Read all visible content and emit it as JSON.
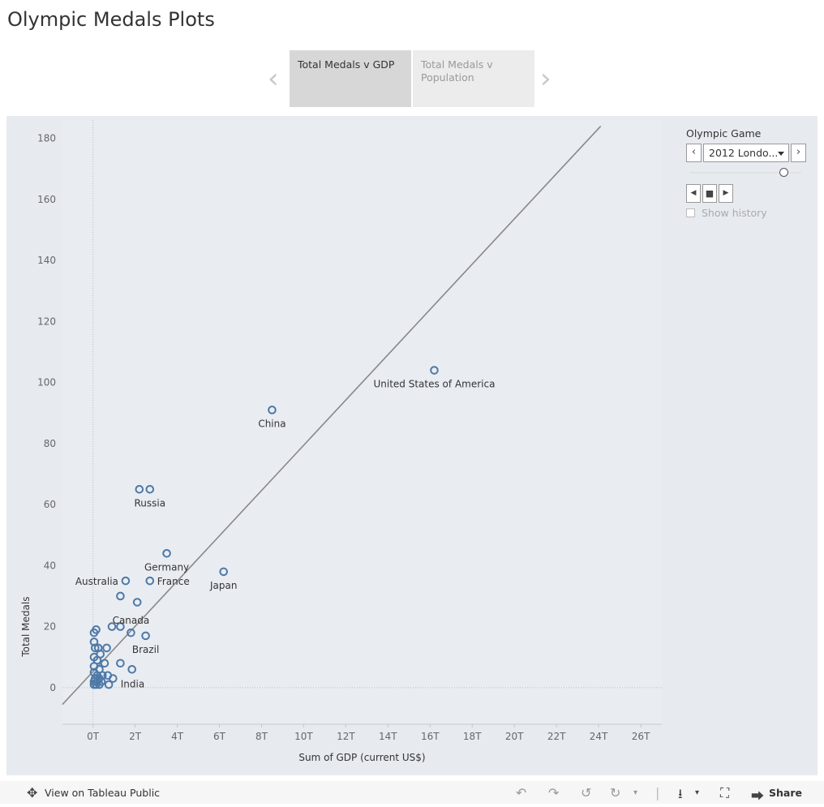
{
  "page": {
    "title": "Olympic Medals Plots"
  },
  "story": {
    "points": [
      {
        "label": "Total Medals v GDP",
        "active": true
      },
      {
        "label": "Total Medals v Population",
        "active": false
      }
    ]
  },
  "controls": {
    "title": "Olympic Game",
    "selected": "2012 Londo...",
    "show_history_label": "Show history"
  },
  "footer": {
    "view_label": "View on Tableau Public",
    "share_label": "Share"
  },
  "colors": {
    "marker": "#4e79a7",
    "trend": "#888888",
    "panel": "#e7ebf0"
  },
  "chart_data": {
    "type": "scatter",
    "xlabel": "Sum of GDP (current US$)",
    "ylabel": "Total Medals",
    "xlim": [
      -1.45,
      27.0
    ],
    "ylim": [
      -12,
      186
    ],
    "x_ticks": [
      0,
      2,
      4,
      6,
      8,
      10,
      12,
      14,
      16,
      18,
      20,
      22,
      24,
      26
    ],
    "x_tick_labels": [
      "0T",
      "2T",
      "4T",
      "6T",
      "8T",
      "10T",
      "12T",
      "14T",
      "16T",
      "18T",
      "20T",
      "22T",
      "24T",
      "26T"
    ],
    "y_ticks": [
      0,
      20,
      40,
      60,
      80,
      100,
      120,
      140,
      160,
      180
    ],
    "grid": false,
    "trend_line": {
      "x": [
        -1.45,
        24.1
      ],
      "y": [
        -5.5,
        184
      ]
    },
    "points": [
      {
        "x": 16.2,
        "y": 104,
        "label": "United States of America"
      },
      {
        "x": 8.5,
        "y": 91,
        "label": "China"
      },
      {
        "x": 2.2,
        "y": 65,
        "label": ""
      },
      {
        "x": 2.7,
        "y": 65,
        "label": "Russia"
      },
      {
        "x": 3.5,
        "y": 44,
        "label": "Germany"
      },
      {
        "x": 6.2,
        "y": 38,
        "label": "Japan"
      },
      {
        "x": 1.55,
        "y": 35,
        "label": "Australia"
      },
      {
        "x": 2.7,
        "y": 35,
        "label": "France"
      },
      {
        "x": 1.3,
        "y": 30,
        "label": ""
      },
      {
        "x": 2.1,
        "y": 28,
        "label": ""
      },
      {
        "x": 0.15,
        "y": 19,
        "label": ""
      },
      {
        "x": 0.05,
        "y": 18,
        "label": ""
      },
      {
        "x": 0.9,
        "y": 20,
        "label": ""
      },
      {
        "x": 1.3,
        "y": 20,
        "label": ""
      },
      {
        "x": 1.8,
        "y": 18,
        "label": "Canada"
      },
      {
        "x": 2.5,
        "y": 17,
        "label": "Brazil"
      },
      {
        "x": 0.05,
        "y": 15,
        "label": ""
      },
      {
        "x": 0.1,
        "y": 13,
        "label": ""
      },
      {
        "x": 0.25,
        "y": 13,
        "label": ""
      },
      {
        "x": 0.65,
        "y": 13,
        "label": ""
      },
      {
        "x": 0.35,
        "y": 11,
        "label": ""
      },
      {
        "x": 0.05,
        "y": 10,
        "label": ""
      },
      {
        "x": 0.2,
        "y": 9,
        "label": ""
      },
      {
        "x": 0.55,
        "y": 8,
        "label": ""
      },
      {
        "x": 1.3,
        "y": 8,
        "label": ""
      },
      {
        "x": 0.05,
        "y": 7,
        "label": ""
      },
      {
        "x": 0.3,
        "y": 6,
        "label": ""
      },
      {
        "x": 1.85,
        "y": 6,
        "label": "India"
      },
      {
        "x": 0.05,
        "y": 5,
        "label": ""
      },
      {
        "x": 0.2,
        "y": 4,
        "label": ""
      },
      {
        "x": 0.45,
        "y": 4,
        "label": ""
      },
      {
        "x": 0.7,
        "y": 4,
        "label": ""
      },
      {
        "x": 0.1,
        "y": 3,
        "label": ""
      },
      {
        "x": 0.3,
        "y": 3,
        "label": ""
      },
      {
        "x": 0.95,
        "y": 3,
        "label": ""
      },
      {
        "x": 0.05,
        "y": 2,
        "label": ""
      },
      {
        "x": 0.2,
        "y": 2,
        "label": ""
      },
      {
        "x": 0.4,
        "y": 2,
        "label": ""
      },
      {
        "x": 0.05,
        "y": 1,
        "label": ""
      },
      {
        "x": 0.15,
        "y": 1,
        "label": ""
      },
      {
        "x": 0.3,
        "y": 1,
        "label": ""
      },
      {
        "x": 0.75,
        "y": 1,
        "label": ""
      }
    ]
  }
}
